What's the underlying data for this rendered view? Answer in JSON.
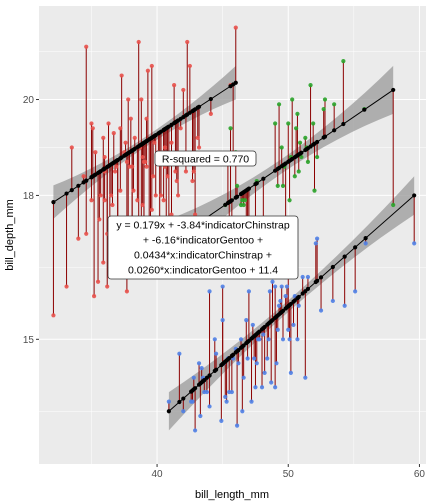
{
  "chart_data": {
    "type": "scatter",
    "xlabel": "bill_length_mm",
    "ylabel": "bill_depth_mm",
    "xlim": [
      31,
      60.5
    ],
    "ylim": [
      12.4,
      21.95
    ],
    "xticks": [
      40,
      50,
      60
    ],
    "yticks": [
      15,
      18,
      20
    ],
    "grid": true,
    "colors": {
      "panel": "#ebebeb",
      "grid": "#ffffff",
      "ribbon": "#999999",
      "fit": "#000000",
      "residual": "#8b0000",
      "red": "#e8504a",
      "green": "#29a329",
      "blue": "#4f7fe6"
    },
    "annotations": {
      "r_squared": "R-squared = 0.770",
      "equation": [
        "y = 0.179x + -3.84*indicatorChinstrap",
        "+ -6.16*indicatorGentoo +",
        "0.0434*x:indicatorChinstrap +",
        "0.0260*x:indicatorGentoo + 11.4"
      ]
    },
    "fits": [
      {
        "name": "red",
        "x": [
          32.1,
          46.0
        ],
        "y": [
          17.86,
          20.35
        ],
        "band": 0.35
      },
      {
        "name": "green",
        "x": [
          40.9,
          58.0
        ],
        "y": [
          17.0,
          20.2
        ],
        "band": 0.5
      },
      {
        "name": "blue",
        "x": [
          40.9,
          59.6
        ],
        "y": [
          13.5,
          18.0
        ],
        "band": 0.4
      }
    ],
    "series": [
      {
        "name": "red",
        "points": [
          [
            32.1,
            15.5
          ],
          [
            33.1,
            16.1
          ],
          [
            33.5,
            19.0
          ],
          [
            34.0,
            17.1
          ],
          [
            34.4,
            18.4
          ],
          [
            34.6,
            21.1
          ],
          [
            34.6,
            17.2
          ],
          [
            35.0,
            17.9
          ],
          [
            35.1,
            19.4
          ],
          [
            35.3,
            18.9
          ],
          [
            35.5,
            16.2
          ],
          [
            35.6,
            17.5
          ],
          [
            35.7,
            18.0
          ],
          [
            35.9,
            19.2
          ],
          [
            35.9,
            16.6
          ],
          [
            36.0,
            17.9
          ],
          [
            36.0,
            18.5
          ],
          [
            36.2,
            17.2
          ],
          [
            36.2,
            16.1
          ],
          [
            36.3,
            19.5
          ],
          [
            36.4,
            17.1
          ],
          [
            36.5,
            18.0
          ],
          [
            36.6,
            17.8
          ],
          [
            36.7,
            19.3
          ],
          [
            36.8,
            18.5
          ],
          [
            36.9,
            18.6
          ],
          [
            37.0,
            16.9
          ],
          [
            37.2,
            18.1
          ],
          [
            37.2,
            19.4
          ],
          [
            37.3,
            20.5
          ],
          [
            37.5,
            18.9
          ],
          [
            37.6,
            19.1
          ],
          [
            37.7,
            18.7
          ],
          [
            37.7,
            16.0
          ],
          [
            37.8,
            20.0
          ],
          [
            37.8,
            17.1
          ],
          [
            37.9,
            18.6
          ],
          [
            38.1,
            18.6
          ],
          [
            38.1,
            17.0
          ],
          [
            38.1,
            16.5
          ],
          [
            38.2,
            18.1
          ],
          [
            38.3,
            19.2
          ],
          [
            38.5,
            17.9
          ],
          [
            38.6,
            21.2
          ],
          [
            38.6,
            17.2
          ],
          [
            38.7,
            19.0
          ],
          [
            38.8,
            17.2
          ],
          [
            38.8,
            20.0
          ],
          [
            38.9,
            17.8
          ],
          [
            38.9,
            18.8
          ],
          [
            39.0,
            17.5
          ],
          [
            39.0,
            18.7
          ],
          [
            39.1,
            18.7
          ],
          [
            39.2,
            19.6
          ],
          [
            39.2,
            18.6
          ],
          [
            39.3,
            20.6
          ],
          [
            39.5,
            16.7
          ],
          [
            39.5,
            17.4
          ],
          [
            39.6,
            17.7
          ],
          [
            39.6,
            20.7
          ],
          [
            39.7,
            18.4
          ],
          [
            39.8,
            19.1
          ],
          [
            39.9,
            18.0
          ],
          [
            40.1,
            18.9
          ],
          [
            40.2,
            17.0
          ],
          [
            40.3,
            18.0
          ],
          [
            40.5,
            17.9
          ],
          [
            40.5,
            18.9
          ],
          [
            40.6,
            18.6
          ],
          [
            40.6,
            19.0
          ],
          [
            40.7,
            17.0
          ],
          [
            40.8,
            18.4
          ],
          [
            40.9,
            16.6
          ],
          [
            41.1,
            17.6
          ],
          [
            41.1,
            19.1
          ],
          [
            41.3,
            20.3
          ],
          [
            41.4,
            18.5
          ],
          [
            41.5,
            18.3
          ],
          [
            41.6,
            18.0
          ],
          [
            41.8,
            19.4
          ],
          [
            42.0,
            20.2
          ],
          [
            42.2,
            18.5
          ],
          [
            42.3,
            21.2
          ],
          [
            42.5,
            20.7
          ],
          [
            42.7,
            18.3
          ],
          [
            42.8,
            18.5
          ],
          [
            42.9,
            17.6
          ],
          [
            43.1,
            19.2
          ],
          [
            43.2,
            19.0
          ],
          [
            44.1,
            19.7
          ],
          [
            45.6,
            20.3
          ],
          [
            45.8,
            18.9
          ],
          [
            46.0,
            21.5
          ],
          [
            39.0,
            17.1
          ],
          [
            37.0,
            16.5
          ],
          [
            36.0,
            18.8
          ],
          [
            35.2,
            15.9
          ],
          [
            35.0,
            19.5
          ],
          [
            38.0,
            19.6
          ],
          [
            39.4,
            16.4
          ]
        ]
      },
      {
        "name": "green",
        "points": [
          [
            40.9,
            16.6
          ],
          [
            42.5,
            16.7
          ],
          [
            43.2,
            16.6
          ],
          [
            45.2,
            17.8
          ],
          [
            45.4,
            18.7
          ],
          [
            45.5,
            17.0
          ],
          [
            45.6,
            19.4
          ],
          [
            45.7,
            17.3
          ],
          [
            46.0,
            18.9
          ],
          [
            46.1,
            18.2
          ],
          [
            46.4,
            17.8
          ],
          [
            46.5,
            17.9
          ],
          [
            46.6,
            17.8
          ],
          [
            46.7,
            17.9
          ],
          [
            46.8,
            16.5
          ],
          [
            46.9,
            16.6
          ],
          [
            47.0,
            17.3
          ],
          [
            47.5,
            16.8
          ],
          [
            47.6,
            18.3
          ],
          [
            48.1,
            16.4
          ],
          [
            49.0,
            19.5
          ],
          [
            49.2,
            18.2
          ],
          [
            49.3,
            19.9
          ],
          [
            49.5,
            19.0
          ],
          [
            49.6,
            18.2
          ],
          [
            49.7,
            18.6
          ],
          [
            49.8,
            17.3
          ],
          [
            50.0,
            19.5
          ],
          [
            50.1,
            17.9
          ],
          [
            50.2,
            18.8
          ],
          [
            50.3,
            20.0
          ],
          [
            50.5,
            18.4
          ],
          [
            50.6,
            19.4
          ],
          [
            50.7,
            19.7
          ],
          [
            50.8,
            18.5
          ],
          [
            50.9,
            19.1
          ],
          [
            51.0,
            18.8
          ],
          [
            51.3,
            19.2
          ],
          [
            51.4,
            19.0
          ],
          [
            51.5,
            18.7
          ],
          [
            51.7,
            20.3
          ],
          [
            51.9,
            19.5
          ],
          [
            52.0,
            18.1
          ],
          [
            52.2,
            18.8
          ],
          [
            52.7,
            19.8
          ],
          [
            52.8,
            20.0
          ],
          [
            53.5,
            19.9
          ],
          [
            54.2,
            20.8
          ],
          [
            55.8,
            19.8
          ],
          [
            58.0,
            17.8
          ]
        ]
      },
      {
        "name": "blue",
        "points": [
          [
            40.9,
            13.7
          ],
          [
            41.7,
            14.7
          ],
          [
            42.0,
            13.5
          ],
          [
            42.6,
            13.7
          ],
          [
            42.7,
            13.7
          ],
          [
            42.8,
            14.2
          ],
          [
            42.9,
            13.1
          ],
          [
            43.2,
            14.5
          ],
          [
            43.3,
            13.4
          ],
          [
            43.4,
            14.4
          ],
          [
            43.5,
            14.2
          ],
          [
            43.6,
            13.9
          ],
          [
            43.8,
            13.9
          ],
          [
            44.0,
            13.6
          ],
          [
            44.4,
            15.0
          ],
          [
            44.5,
            14.7
          ],
          [
            44.9,
            13.3
          ],
          [
            45.0,
            15.4
          ],
          [
            45.1,
            14.5
          ],
          [
            45.2,
            13.8
          ],
          [
            45.3,
            13.7
          ],
          [
            45.4,
            14.6
          ],
          [
            45.5,
            13.9
          ],
          [
            45.7,
            13.9
          ],
          [
            45.8,
            14.6
          ],
          [
            46.1,
            13.2
          ],
          [
            46.2,
            14.5
          ],
          [
            46.4,
            15.0
          ],
          [
            46.5,
            13.5
          ],
          [
            46.6,
            14.2
          ],
          [
            46.8,
            15.4
          ],
          [
            46.9,
            14.6
          ],
          [
            47.2,
            13.7
          ],
          [
            47.3,
            15.3
          ],
          [
            47.4,
            14.6
          ],
          [
            47.5,
            14.0
          ],
          [
            47.6,
            14.5
          ],
          [
            47.7,
            15.0
          ],
          [
            47.8,
            15.0
          ],
          [
            48.1,
            15.1
          ],
          [
            48.2,
            14.3
          ],
          [
            48.4,
            14.6
          ],
          [
            48.5,
            15.0
          ],
          [
            48.6,
            16.0
          ],
          [
            48.7,
            14.1
          ],
          [
            48.8,
            16.2
          ],
          [
            49.0,
            16.1
          ],
          [
            49.1,
            14.5
          ],
          [
            49.2,
            15.2
          ],
          [
            49.3,
            15.7
          ],
          [
            49.4,
            15.8
          ],
          [
            49.5,
            16.1
          ],
          [
            49.6,
            15.0
          ],
          [
            49.8,
            15.9
          ],
          [
            49.9,
            16.1
          ],
          [
            50.0,
            15.2
          ],
          [
            50.1,
            15.0
          ],
          [
            50.2,
            14.3
          ],
          [
            50.4,
            15.3
          ],
          [
            50.5,
            15.9
          ],
          [
            50.7,
            15.0
          ],
          [
            50.8,
            15.7
          ],
          [
            51.1,
            16.3
          ],
          [
            51.3,
            14.2
          ],
          [
            51.5,
            16.3
          ],
          [
            52.1,
            17.0
          ],
          [
            52.2,
            17.1
          ],
          [
            52.5,
            15.6
          ],
          [
            53.4,
            15.8
          ],
          [
            54.3,
            15.7
          ],
          [
            55.1,
            16.0
          ],
          [
            55.9,
            17.0
          ],
          [
            59.6,
            17.0
          ],
          [
            46.0,
            14.8
          ],
          [
            47.0,
            16.0
          ],
          [
            48.0,
            14.0
          ],
          [
            44.0,
            16.0
          ],
          [
            45.0,
            16.1
          ],
          [
            50.0,
            16.3
          ],
          [
            49.0,
            14.0
          ]
        ]
      }
    ]
  }
}
